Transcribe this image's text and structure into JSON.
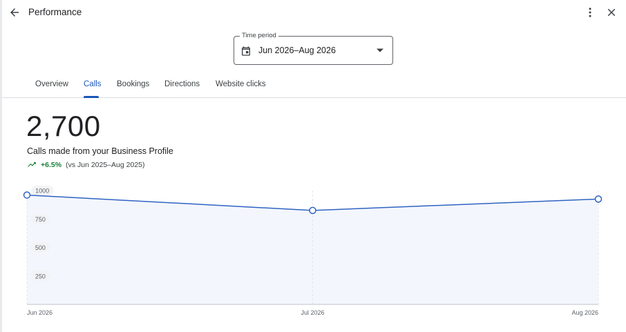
{
  "header": {
    "title": "Performance",
    "back_icon": "arrow-back-icon",
    "more_icon": "more-vert-icon",
    "close_icon": "close-icon"
  },
  "time_period": {
    "label": "Time period",
    "value": "Jun 2026–Aug 2026",
    "icon": "calendar-icon"
  },
  "tabs": [
    {
      "label": "Overview",
      "active": false
    },
    {
      "label": "Calls",
      "active": true
    },
    {
      "label": "Bookings",
      "active": false
    },
    {
      "label": "Directions",
      "active": false
    },
    {
      "label": "Website clicks",
      "active": false
    }
  ],
  "metric": {
    "value": "2,700",
    "description": "Calls made from your Business Profile",
    "change": "+6.5%",
    "comparison": "(vs Jun 2025–Aug 2025)"
  },
  "colors": {
    "accent": "#1a57b8",
    "positive": "#188038",
    "line": "#2f63c2",
    "fill": "#f3f6fd"
  },
  "chart_data": {
    "type": "area",
    "categories": [
      "Jun 2026",
      "Jul 2026",
      "Aug 2026"
    ],
    "values": [
      960,
      825,
      925
    ],
    "y_ticks": [
      "250",
      "500",
      "750",
      "1000"
    ],
    "ylim": [
      0,
      1000
    ],
    "grid": "vertical"
  }
}
